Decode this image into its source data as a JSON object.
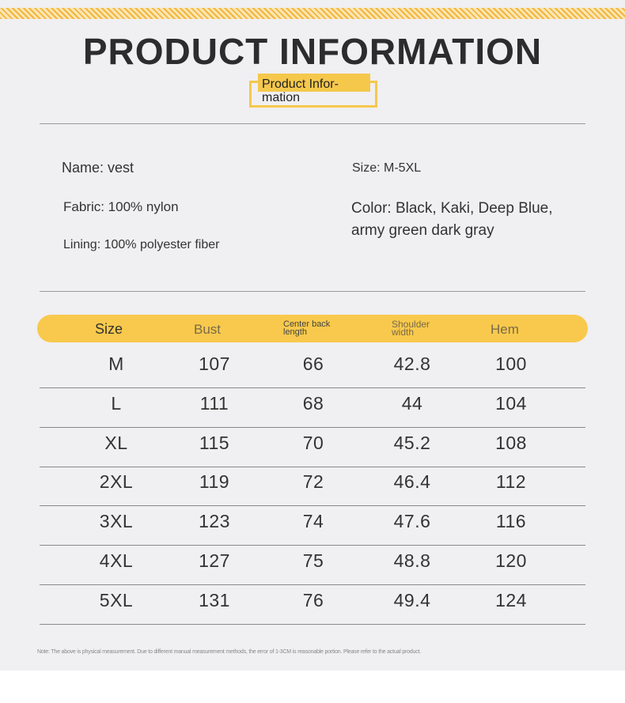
{
  "title": "PRODUCT INFORMATION",
  "subtitle": "Product Infor-\nmation",
  "info": {
    "name": "Name: vest",
    "fabric": "Fabric: 100% nylon",
    "lining": "Lining: 100% polyester fiber",
    "size": "Size: M-5XL",
    "color": "Color: Black, Kaki, Deep Blue, army green dark gray"
  },
  "table": {
    "headers": {
      "size": "Size",
      "bust": "Bust",
      "center_back": "Center back\nlength",
      "shoulder": "Shoulder\nwidth",
      "hem": "Hem"
    },
    "rows": [
      [
        "M",
        "107",
        "66",
        "42.8",
        "100"
      ],
      [
        "L",
        "111",
        "68",
        "44",
        "104"
      ],
      [
        "XL",
        "115",
        "70",
        "45.2",
        "108"
      ],
      [
        "2XL",
        "119",
        "72",
        "46.4",
        "112"
      ],
      [
        "3XL",
        "123",
        "74",
        "47.6",
        "116"
      ],
      [
        "4XL",
        "127",
        "75",
        "48.8",
        "120"
      ],
      [
        "5XL",
        "131",
        "76",
        "49.4",
        "124"
      ]
    ]
  },
  "note": "Note: The above is physical measurement. Due to different manual measurement methods, the error of 1-3CM is reasonable portion. Please refer to the actual product.",
  "colors": {
    "accent": "#f8c94c",
    "background": "#f0eff1"
  }
}
